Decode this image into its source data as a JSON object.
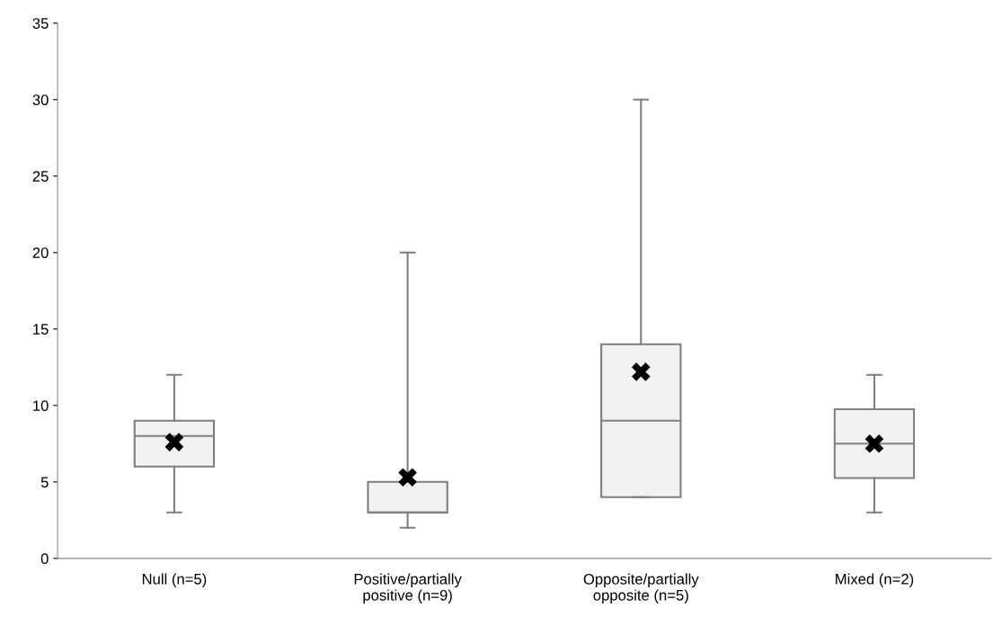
{
  "chart_data": {
    "type": "box",
    "categories": [
      "Null (n=5)",
      "Positive/partially\npositive (n=9)",
      "Opposite/partially\nopposite (n=5)",
      "Mixed (n=2)"
    ],
    "boxes": [
      {
        "low": 3,
        "q1": 6,
        "median": 8,
        "q3": 9,
        "high": 12,
        "mean": 7.6
      },
      {
        "low": 2,
        "q1": 3,
        "median": 3,
        "q3": 5,
        "high": 20,
        "mean": 5.3
      },
      {
        "low": 4,
        "q1": 4,
        "median": 9,
        "q3": 14,
        "high": 30,
        "mean": 12.2
      },
      {
        "low": 3,
        "q1": 5.25,
        "median": 7.5,
        "q3": 9.75,
        "high": 12,
        "mean": 7.5
      }
    ],
    "color": "#f2f2f2",
    "ylim": [
      0,
      35
    ],
    "yticks": [
      0,
      5,
      10,
      15,
      20,
      25,
      30,
      35
    ],
    "grid": false,
    "marker": "cross"
  }
}
